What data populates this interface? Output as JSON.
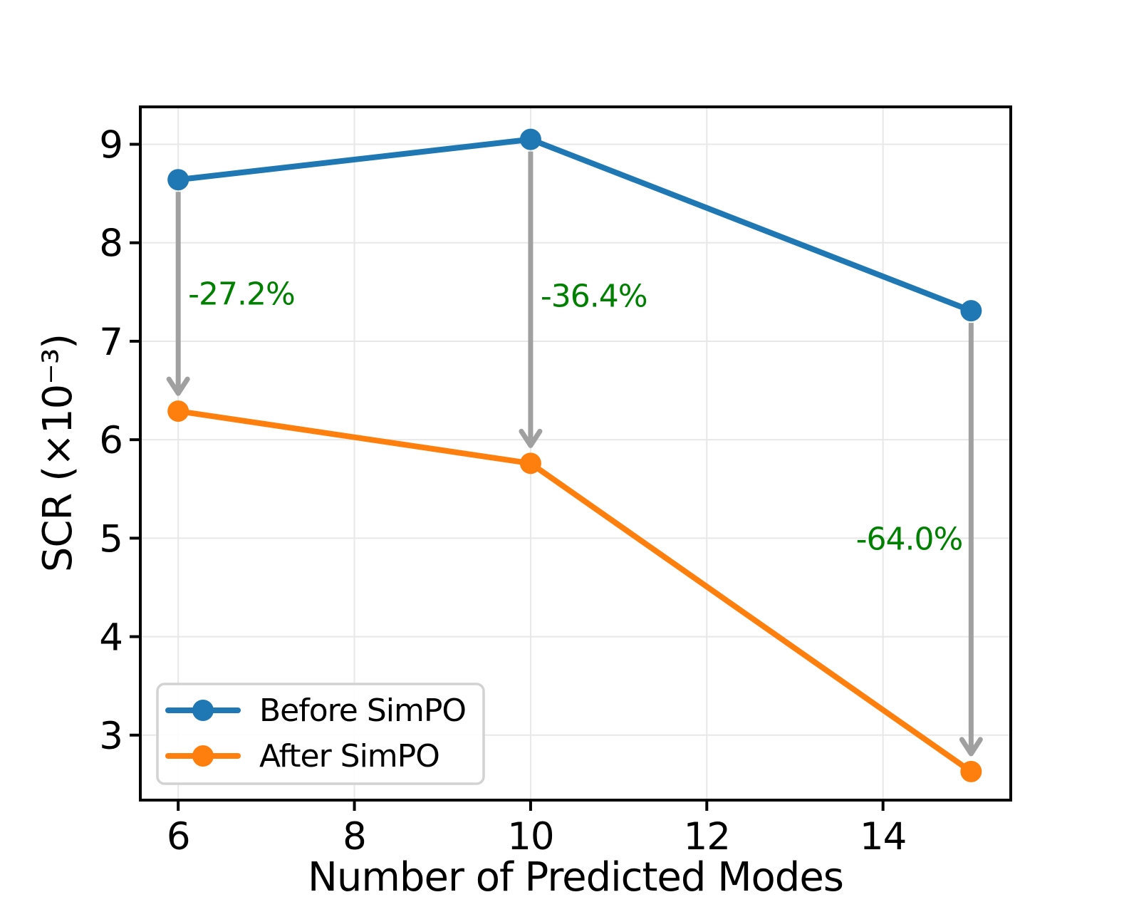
{
  "chart_data": {
    "type": "line",
    "title": "",
    "xlabel": "Number of Predicted Modes",
    "ylabel": "SCR (×10⁻³)",
    "x": [
      6,
      10,
      15
    ],
    "series": [
      {
        "name": "Before SimPO",
        "color": "#1f77b4",
        "values": [
          8.64,
          9.05,
          7.31
        ]
      },
      {
        "name": "After SimPO",
        "color": "#ff7f0e",
        "values": [
          6.29,
          5.76,
          2.63
        ]
      }
    ],
    "annotations": [
      {
        "x": 6,
        "label": "-27.2%",
        "side": "right",
        "label_y": 7.48
      },
      {
        "x": 10,
        "label": "-36.4%",
        "side": "right",
        "label_y": 7.46
      },
      {
        "x": 15,
        "label": "-64.0%",
        "side": "left",
        "label_y": 4.99
      }
    ],
    "xticks": [
      6,
      8,
      10,
      12,
      14
    ],
    "yticks": [
      3,
      4,
      5,
      6,
      7,
      8,
      9
    ],
    "xlim": [
      5.57,
      15.45
    ],
    "ylim": [
      2.34,
      9.38
    ],
    "grid": true,
    "legend": {
      "position": "lower-left"
    },
    "colors": {
      "annotation_text": "#008000",
      "arrow": "#a0a0a0",
      "grid": "#e8e8e8",
      "spine": "#000000",
      "legend_border": "#d2d2d2"
    }
  }
}
